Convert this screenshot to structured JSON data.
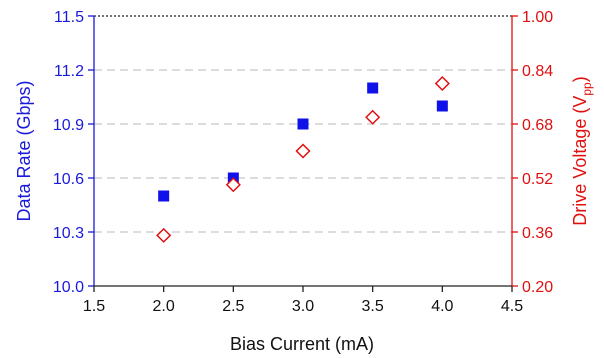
{
  "chart_data": {
    "type": "scatter",
    "title": "",
    "xlabel": "Bias Current (mA)",
    "ylabel_left": "Data Rate (Gbps)",
    "ylabel_right": {
      "prefix": "Drive Voltage (V",
      "subscript": "pp",
      "suffix": ")"
    },
    "xlim": [
      1.5,
      4.5
    ],
    "ylim_left": [
      10.0,
      11.5
    ],
    "ylim_right": [
      0.2,
      1.0
    ],
    "x_ticks": [
      "1.5",
      "2.0",
      "2.5",
      "3.0",
      "3.5",
      "4.0",
      "4.5"
    ],
    "y_left_ticks": [
      "10.0",
      "10.3",
      "10.6",
      "10.9",
      "11.2",
      "11.5"
    ],
    "y_right_ticks": [
      "0.20",
      "0.36",
      "0.52",
      "0.68",
      "0.84",
      "1.00"
    ],
    "grid": "horizontal dashed",
    "colors": {
      "left_axis": "#1a1adb",
      "right_axis": "#e01010",
      "grid": "#c8c8c8"
    },
    "series": [
      {
        "axis": "left",
        "marker": "filled-square",
        "color": "#1010e8",
        "x": [
          2.0,
          2.5,
          3.0,
          3.5,
          4.0
        ],
        "y": [
          10.5,
          10.6,
          10.9,
          11.1,
          11.0
        ]
      },
      {
        "axis": "right",
        "marker": "open-diamond",
        "color": "#e01010",
        "x": [
          2.0,
          2.5,
          3.0,
          3.5,
          4.0
        ],
        "y": [
          0.35,
          0.5,
          0.6,
          0.7,
          0.8
        ]
      }
    ]
  }
}
